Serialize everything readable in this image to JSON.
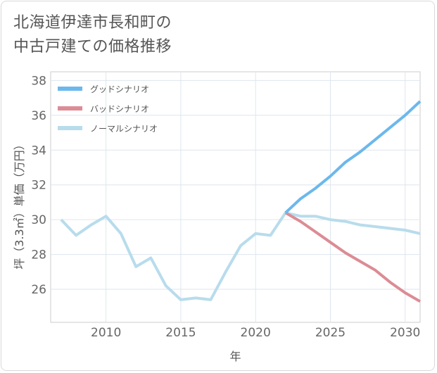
{
  "title_line1": "北海道伊達市長和町の",
  "title_line2": "中古戸建ての価格推移",
  "chart_data": {
    "type": "line",
    "xlabel": "年",
    "ylabel": "坪（3.3㎡）単価（万円）",
    "xlim": [
      2006.3,
      2031
    ],
    "ylim": [
      24.1,
      38.5
    ],
    "x_ticks": [
      2010,
      2015,
      2020,
      2025,
      2030
    ],
    "y_ticks": [
      26,
      28,
      30,
      32,
      34,
      36,
      38
    ],
    "grid": true,
    "legend_position": "top-left",
    "series": [
      {
        "name": "グッドシナリオ",
        "color": "#6cb8ec",
        "x": [
          2022,
          2023,
          2024,
          2025,
          2026,
          2027,
          2028,
          2029,
          2030,
          2031
        ],
        "values": [
          30.4,
          31.2,
          31.8,
          32.5,
          33.3,
          33.9,
          34.6,
          35.3,
          36.0,
          36.8
        ]
      },
      {
        "name": "バッドシナリオ",
        "color": "#dc8c94",
        "x": [
          2022,
          2023,
          2024,
          2025,
          2026,
          2027,
          2028,
          2029,
          2030,
          2031
        ],
        "values": [
          30.4,
          29.9,
          29.3,
          28.7,
          28.1,
          27.6,
          27.1,
          26.4,
          25.8,
          25.3
        ]
      },
      {
        "name": "ノーマルシナリオ",
        "color": "#b8dcec",
        "x": [
          2007,
          2008,
          2009,
          2010,
          2011,
          2012,
          2013,
          2014,
          2015,
          2016,
          2017,
          2018,
          2019,
          2020,
          2021,
          2022,
          2023,
          2024,
          2025,
          2026,
          2027,
          2028,
          2029,
          2030,
          2031
        ],
        "values": [
          30.0,
          29.1,
          29.7,
          30.2,
          29.2,
          27.3,
          27.8,
          26.2,
          25.4,
          25.5,
          25.4,
          27.0,
          28.5,
          29.2,
          29.1,
          30.4,
          30.2,
          30.2,
          30.0,
          29.9,
          29.7,
          29.6,
          29.5,
          29.4,
          29.2
        ]
      }
    ]
  }
}
